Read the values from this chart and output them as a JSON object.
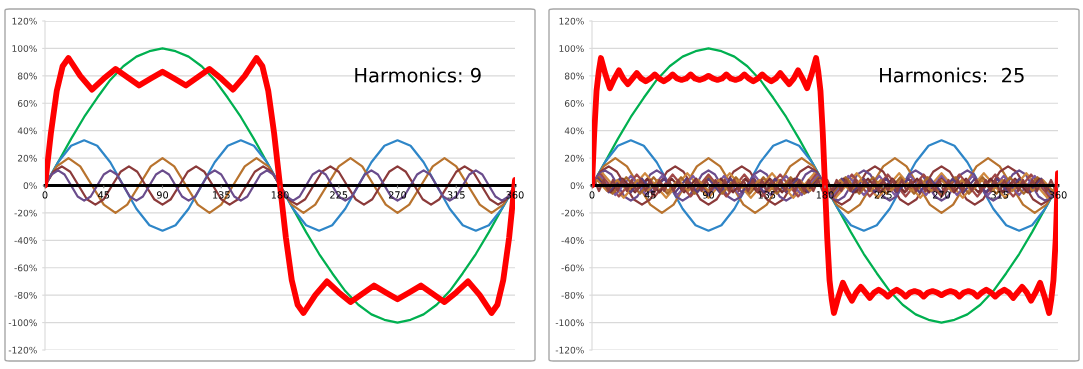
{
  "chart_data": [
    {
      "type": "line",
      "annotations": [
        "Harmonics: 9"
      ],
      "xlim": [
        0,
        360
      ],
      "xticks": [
        0,
        45,
        90,
        135,
        180,
        225,
        270,
        315,
        360
      ],
      "ylim": [
        -120,
        120
      ],
      "yticks": [
        {
          "value": -120,
          "label": "-120%"
        },
        {
          "value": -100,
          "label": "-100%"
        },
        {
          "value": -80,
          "label": "-80%"
        },
        {
          "value": -60,
          "label": "-60%"
        },
        {
          "value": -40,
          "label": "-40%"
        },
        {
          "value": -20,
          "label": "-20%"
        },
        {
          "value": 0,
          "label": "0%"
        },
        {
          "value": 20,
          "label": "20%"
        },
        {
          "value": 40,
          "label": "40%"
        },
        {
          "value": 60,
          "label": "60%"
        },
        {
          "value": 80,
          "label": "80%"
        },
        {
          "value": 100,
          "label": "100%"
        },
        {
          "value": 120,
          "label": "120%"
        }
      ],
      "grid": "y",
      "series": [
        {
          "color": "#ff0000",
          "x": [
            0,
            4.5,
            9,
            13.5,
            18,
            27,
            36,
            45,
            54,
            63,
            72,
            81,
            90,
            99,
            108,
            117,
            126,
            135,
            144,
            153,
            162,
            166.5,
            171,
            175.5,
            180,
            184.5,
            189,
            193.5,
            198,
            207,
            216,
            225,
            234,
            243,
            252,
            261,
            270,
            279,
            288,
            297,
            306,
            315,
            324,
            333,
            342,
            346.5,
            351,
            355.5,
            360
          ],
          "values": [
            0,
            38,
            69,
            87,
            93,
            80,
            70,
            78,
            85,
            79,
            73,
            78,
            83,
            78,
            73,
            79,
            85,
            78,
            70,
            80,
            93,
            87,
            69,
            38,
            0,
            -38,
            -69,
            -87,
            -93,
            -80,
            -70,
            -78,
            -85,
            -79,
            -73,
            -78,
            -83,
            -78,
            -73,
            -79,
            -85,
            -78,
            -70,
            -80,
            -93,
            -87,
            -69,
            -38,
            4
          ]
        },
        {
          "color": "#00b050",
          "x": [
            0,
            10,
            20,
            30,
            40,
            50,
            60,
            70,
            80,
            90,
            100,
            110,
            120,
            130,
            140,
            150,
            160,
            170,
            180,
            190,
            200,
            210,
            220,
            230,
            240,
            250,
            260,
            270,
            280,
            290,
            300,
            310,
            320,
            330,
            340,
            350,
            360
          ],
          "values": [
            0,
            17,
            34,
            50,
            64,
            77,
            87,
            94,
            98,
            100,
            98,
            94,
            87,
            77,
            64,
            50,
            34,
            17,
            0,
            -17,
            -34,
            -50,
            -64,
            -77,
            -87,
            -94,
            -98,
            -100,
            -98,
            -94,
            -87,
            -77,
            -64,
            -50,
            -34,
            -17,
            0
          ]
        },
        {
          "color": "#2e86c8",
          "x": [
            0,
            10,
            20,
            30,
            40,
            50,
            60,
            70,
            80,
            90,
            100,
            110,
            120,
            130,
            140,
            150,
            160,
            170,
            180,
            190,
            200,
            210,
            220,
            230,
            240,
            250,
            260,
            270,
            280,
            290,
            300,
            310,
            320,
            330,
            340,
            350,
            360
          ],
          "values": [
            0,
            17,
            29,
            33,
            29,
            17,
            0,
            -17,
            -29,
            -33,
            -29,
            -17,
            0,
            17,
            29,
            33,
            29,
            17,
            0,
            -17,
            -29,
            -33,
            -29,
            -17,
            0,
            17,
            29,
            33,
            29,
            17,
            0,
            -17,
            -29,
            -33,
            -29,
            -17,
            0
          ]
        },
        {
          "color": "#b8732e",
          "x": [
            0,
            9,
            18,
            27,
            36,
            45,
            54,
            63,
            72,
            81,
            90,
            99,
            108,
            117,
            126,
            135,
            144,
            153,
            162,
            171,
            180,
            189,
            198,
            207,
            216,
            225,
            234,
            243,
            252,
            261,
            270,
            279,
            288,
            297,
            306,
            315,
            324,
            333,
            342,
            351,
            360
          ],
          "values": [
            0,
            14,
            20,
            14,
            0,
            -14,
            -20,
            -14,
            0,
            14,
            20,
            14,
            0,
            -14,
            -20,
            -14,
            0,
            14,
            20,
            14,
            0,
            -14,
            -20,
            -14,
            0,
            14,
            20,
            14,
            0,
            -14,
            -20,
            -14,
            0,
            14,
            20,
            14,
            0,
            -14,
            -20,
            -14,
            0
          ]
        },
        {
          "color": "#8b3a3a",
          "x": [
            0,
            6.4,
            12.9,
            19.3,
            25.7,
            32.1,
            38.6,
            45,
            51.4,
            57.9,
            64.3,
            70.7,
            77.1,
            83.6,
            90,
            96.4,
            102.9,
            109.3,
            115.7,
            122.1,
            128.6,
            135,
            141.4,
            147.9,
            154.3,
            160.7,
            167.1,
            173.6,
            180,
            186.4,
            192.9,
            199.3,
            205.7,
            212.1,
            218.6,
            225,
            231.4,
            237.9,
            244.3,
            250.7,
            257.1,
            263.6,
            270,
            276.4,
            282.9,
            289.3,
            295.7,
            302.1,
            308.6,
            315,
            321.4,
            327.9,
            334.3,
            340.7,
            347.1,
            353.6,
            360
          ],
          "values": [
            0,
            10,
            14,
            10,
            0,
            -10,
            -14,
            -10,
            0,
            10,
            14,
            10,
            0,
            -10,
            -14,
            -10,
            0,
            10,
            14,
            10,
            0,
            -10,
            -14,
            -10,
            0,
            10,
            14,
            10,
            0,
            -10,
            -14,
            -10,
            0,
            10,
            14,
            10,
            0,
            -10,
            -14,
            -10,
            0,
            10,
            14,
            10,
            0,
            -10,
            -14,
            -10,
            0,
            10,
            14,
            10,
            0,
            -10,
            -14,
            -10,
            0
          ]
        },
        {
          "color": "#6a4c8c",
          "x": [
            0,
            5,
            10,
            15,
            20,
            25,
            30,
            35,
            40,
            45,
            50,
            55,
            60,
            65,
            70,
            75,
            80,
            85,
            90,
            95,
            100,
            105,
            110,
            115,
            120,
            125,
            130,
            135,
            140,
            145,
            150,
            155,
            160,
            165,
            170,
            175,
            180,
            185,
            190,
            195,
            200,
            205,
            210,
            215,
            220,
            225,
            230,
            235,
            240,
            245,
            250,
            255,
            260,
            265,
            270,
            275,
            280,
            285,
            290,
            295,
            300,
            305,
            310,
            315,
            320,
            325,
            330,
            335,
            340,
            345,
            350,
            355,
            360
          ],
          "values": [
            0,
            8,
            11,
            8,
            0,
            -8,
            -11,
            -8,
            0,
            8,
            11,
            8,
            0,
            -8,
            -11,
            -8,
            0,
            8,
            11,
            8,
            0,
            -8,
            -11,
            -8,
            0,
            8,
            11,
            8,
            0,
            -8,
            -11,
            -8,
            0,
            8,
            11,
            8,
            0,
            -8,
            -11,
            -8,
            0,
            8,
            11,
            8,
            0,
            -8,
            -11,
            -8,
            0,
            8,
            11,
            8,
            0,
            -8,
            -11,
            -8,
            0,
            8,
            11,
            8,
            0,
            -8,
            -11,
            -8,
            0,
            8,
            11,
            8,
            0,
            -8,
            -11,
            -8,
            0
          ]
        }
      ]
    },
    {
      "type": "line",
      "annotations": [
        "Harmonics:  25"
      ],
      "xlim": [
        0,
        360
      ],
      "xticks": [
        0,
        45,
        90,
        135,
        180,
        225,
        270,
        315,
        360
      ],
      "ylim": [
        -120,
        120
      ],
      "yticks": [
        {
          "value": -120,
          "label": "-120%"
        },
        {
          "value": -100,
          "label": "-100%"
        },
        {
          "value": -80,
          "label": "-80%"
        },
        {
          "value": -60,
          "label": "-60%"
        },
        {
          "value": -40,
          "label": "-40%"
        },
        {
          "value": -20,
          "label": "-20%"
        },
        {
          "value": 0,
          "label": "0%"
        },
        {
          "value": 20,
          "label": "20%"
        },
        {
          "value": 40,
          "label": "40%"
        },
        {
          "value": 60,
          "label": "60%"
        },
        {
          "value": 80,
          "label": "80%"
        },
        {
          "value": 100,
          "label": "100%"
        },
        {
          "value": 120,
          "label": "120%"
        }
      ],
      "grid": "y",
      "series": [
        {
          "color": "#ff0000",
          "x": [
            0,
            1.7,
            3.5,
            5.2,
            6.9,
            10.4,
            13.8,
            17.3,
            20.8,
            24.2,
            27.7,
            31.2,
            34.6,
            38.1,
            41.5,
            45,
            48.5,
            51.9,
            55.4,
            58.8,
            62.3,
            65.8,
            69.2,
            72.7,
            76.2,
            79.6,
            83.1,
            86.5,
            90,
            93.5,
            96.9,
            100.4,
            103.8,
            107.3,
            110.8,
            114.2,
            117.7,
            121.2,
            124.6,
            128.1,
            131.5,
            135,
            138.5,
            141.9,
            145.4,
            148.8,
            152.3,
            155.8,
            159.2,
            162.7,
            166.2,
            169.6,
            173.1,
            174.8,
            176.5,
            178.3,
            180,
            181.7,
            183.5,
            185.2,
            186.9,
            190.4,
            193.8,
            197.3,
            200.8,
            204.2,
            207.7,
            211.2,
            214.6,
            218.1,
            221.5,
            225,
            228.5,
            231.9,
            235.4,
            238.8,
            242.3,
            245.8,
            249.2,
            252.7,
            256.2,
            259.6,
            263.1,
            266.5,
            270,
            273.5,
            276.9,
            280.4,
            283.8,
            287.3,
            290.8,
            294.2,
            297.7,
            301.2,
            304.6,
            308.1,
            311.5,
            315,
            318.5,
            321.9,
            325.4,
            328.8,
            332.3,
            335.8,
            339.2,
            342.7,
            346.2,
            349.6,
            353.1,
            354.8,
            356.5,
            358.3,
            360
          ],
          "values": [
            0,
            38,
            69,
            83,
            93,
            81,
            71,
            78,
            84,
            78,
            74,
            78,
            82,
            78,
            76,
            78,
            81,
            78,
            76,
            78,
            81,
            78,
            77,
            78,
            81,
            78,
            77,
            78,
            80,
            78,
            77,
            78,
            81,
            78,
            77,
            78,
            81,
            78,
            76,
            78,
            81,
            78,
            76,
            78,
            82,
            78,
            74,
            78,
            84,
            78,
            71,
            81,
            93,
            83,
            69,
            38,
            0,
            -38,
            -69,
            -83,
            -93,
            -81,
            -71,
            -78,
            -84,
            -78,
            -74,
            -78,
            -82,
            -78,
            -76,
            -78,
            -81,
            -78,
            -76,
            -78,
            -81,
            -78,
            -77,
            -78,
            -81,
            -78,
            -77,
            -78,
            -80,
            -78,
            -77,
            -78,
            -81,
            -78,
            -77,
            -78,
            -81,
            -78,
            -76,
            -78,
            -81,
            -78,
            -76,
            -78,
            -82,
            -78,
            -74,
            -78,
            -84,
            -78,
            -71,
            -81,
            -93,
            -83,
            -69,
            -38,
            9
          ]
        },
        {
          "color": "#00b050",
          "x": [
            0,
            10,
            20,
            30,
            40,
            50,
            60,
            70,
            80,
            90,
            100,
            110,
            120,
            130,
            140,
            150,
            160,
            170,
            180,
            190,
            200,
            210,
            220,
            230,
            240,
            250,
            260,
            270,
            280,
            290,
            300,
            310,
            320,
            330,
            340,
            350,
            360
          ],
          "values": [
            0,
            17,
            34,
            50,
            64,
            77,
            87,
            94,
            98,
            100,
            98,
            94,
            87,
            77,
            64,
            50,
            34,
            17,
            0,
            -17,
            -34,
            -50,
            -64,
            -77,
            -87,
            -94,
            -98,
            -100,
            -98,
            -94,
            -87,
            -77,
            -64,
            -50,
            -34,
            -17,
            0
          ]
        },
        {
          "color": "#2e86c8",
          "x": [
            0,
            10,
            20,
            30,
            40,
            50,
            60,
            70,
            80,
            90,
            100,
            110,
            120,
            130,
            140,
            150,
            160,
            170,
            180,
            190,
            200,
            210,
            220,
            230,
            240,
            250,
            260,
            270,
            280,
            290,
            300,
            310,
            320,
            330,
            340,
            350,
            360
          ],
          "values": [
            0,
            17,
            29,
            33,
            29,
            17,
            0,
            -17,
            -29,
            -33,
            -29,
            -17,
            0,
            17,
            29,
            33,
            29,
            17,
            0,
            -17,
            -29,
            -33,
            -29,
            -17,
            0,
            17,
            29,
            33,
            29,
            17,
            0,
            -17,
            -29,
            -33,
            -29,
            -17,
            0
          ]
        },
        {
          "color": "#b8732e",
          "x": [
            0,
            9,
            18,
            27,
            36,
            45,
            54,
            63,
            72,
            81,
            90,
            99,
            108,
            117,
            126,
            135,
            144,
            153,
            162,
            171,
            180,
            189,
            198,
            207,
            216,
            225,
            234,
            243,
            252,
            261,
            270,
            279,
            288,
            297,
            306,
            315,
            324,
            333,
            342,
            351,
            360
          ],
          "values": [
            0,
            14,
            20,
            14,
            0,
            -14,
            -20,
            -14,
            0,
            14,
            20,
            14,
            0,
            -14,
            -20,
            -14,
            0,
            14,
            20,
            14,
            0,
            -14,
            -20,
            -14,
            0,
            14,
            20,
            14,
            0,
            -14,
            -20,
            -14,
            0,
            14,
            20,
            14,
            0,
            -14,
            -20,
            -14,
            0
          ]
        },
        {
          "color": "#8b3a3a",
          "x": [
            0,
            6.4,
            12.9,
            19.3,
            25.7,
            32.1,
            38.6,
            45,
            51.4,
            57.9,
            64.3,
            70.7,
            77.1,
            83.6,
            90,
            96.4,
            102.9,
            109.3,
            115.7,
            122.1,
            128.6,
            135,
            141.4,
            147.9,
            154.3,
            160.7,
            167.1,
            173.6,
            180,
            186.4,
            192.9,
            199.3,
            205.7,
            212.1,
            218.6,
            225,
            231.4,
            237.9,
            244.3,
            250.7,
            257.1,
            263.6,
            270,
            276.4,
            282.9,
            289.3,
            295.7,
            302.1,
            308.6,
            315,
            321.4,
            327.9,
            334.3,
            340.7,
            347.1,
            353.6,
            360
          ],
          "values": [
            0,
            10,
            14,
            10,
            0,
            -10,
            -14,
            -10,
            0,
            10,
            14,
            10,
            0,
            -10,
            -14,
            -10,
            0,
            10,
            14,
            10,
            0,
            -10,
            -14,
            -10,
            0,
            10,
            14,
            10,
            0,
            -10,
            -14,
            -10,
            0,
            10,
            14,
            10,
            0,
            -10,
            -14,
            -10,
            0,
            10,
            14,
            10,
            0,
            -10,
            -14,
            -10,
            0,
            10,
            14,
            10,
            0,
            -10,
            -14,
            -10,
            0
          ]
        },
        {
          "color": "#6a4c8c",
          "x": [
            0,
            5,
            10,
            15,
            20,
            25,
            30,
            35,
            40,
            45,
            50,
            55,
            60,
            65,
            70,
            75,
            80,
            85,
            90,
            95,
            100,
            105,
            110,
            115,
            120,
            125,
            130,
            135,
            140,
            145,
            150,
            155,
            160,
            165,
            170,
            175,
            180,
            185,
            190,
            195,
            200,
            205,
            210,
            215,
            220,
            225,
            230,
            235,
            240,
            245,
            250,
            255,
            260,
            265,
            270,
            275,
            280,
            285,
            290,
            295,
            300,
            305,
            310,
            315,
            320,
            325,
            330,
            335,
            340,
            345,
            350,
            355,
            360
          ],
          "values": [
            0,
            8,
            11,
            8,
            0,
            -8,
            -11,
            -8,
            0,
            8,
            11,
            8,
            0,
            -8,
            -11,
            -8,
            0,
            8,
            11,
            8,
            0,
            -8,
            -11,
            -8,
            0,
            8,
            11,
            8,
            0,
            -8,
            -11,
            -8,
            0,
            8,
            11,
            8,
            0,
            -8,
            -11,
            -8,
            0,
            8,
            11,
            8,
            0,
            -8,
            -11,
            -8,
            0,
            8,
            11,
            8,
            0,
            -8,
            -11,
            -8,
            0,
            8,
            11,
            8,
            0,
            -8,
            -11,
            -8,
            0,
            8,
            11,
            8,
            0,
            -8,
            -11,
            -8,
            0
          ]
        },
        {
          "color": "#d08a40",
          "x": [
            0,
            8.2,
            24.5,
            40.9,
            57.3,
            73.6,
            90,
            106.4,
            122.7,
            139.1,
            155.5,
            171.8,
            188.2,
            204.5,
            220.9,
            237.3,
            253.6,
            270,
            286.4,
            302.7,
            319.1,
            335.5,
            351.8,
            360
          ],
          "values": [
            0,
            9,
            -9,
            9,
            -9,
            9,
            -9,
            9,
            -9,
            9,
            -9,
            9,
            -9,
            9,
            -9,
            9,
            -9,
            9,
            -9,
            9,
            -9,
            9,
            -9,
            0
          ]
        },
        {
          "color": "#a04848",
          "x": [
            0,
            6.9,
            20.8,
            34.6,
            48.5,
            62.3,
            76.2,
            90,
            103.8,
            117.7,
            131.5,
            145.4,
            159.2,
            173.1,
            186.9,
            200.8,
            214.6,
            228.5,
            242.3,
            256.2,
            270,
            283.8,
            297.7,
            311.5,
            325.4,
            339.2,
            353.1,
            360
          ],
          "values": [
            0,
            8,
            -8,
            8,
            -8,
            8,
            -8,
            8,
            -8,
            8,
            -8,
            8,
            -8,
            8,
            -8,
            8,
            -8,
            8,
            -8,
            8,
            -8,
            8,
            -8,
            8,
            -8,
            8,
            -8,
            0
          ]
        },
        {
          "color": "#7d5aa0",
          "x": [
            0,
            6,
            18,
            30,
            42,
            54,
            66,
            78,
            90,
            102,
            114,
            126,
            138,
            150,
            162,
            174,
            186,
            198,
            210,
            222,
            234,
            246,
            258,
            270,
            282,
            294,
            306,
            318,
            330,
            342,
            354,
            360
          ],
          "values": [
            0,
            7,
            -7,
            7,
            -7,
            7,
            -7,
            7,
            -7,
            7,
            -7,
            7,
            -7,
            7,
            -7,
            7,
            -7,
            7,
            -7,
            7,
            -7,
            7,
            -7,
            7,
            -7,
            7,
            -7,
            7,
            -7,
            7,
            -7,
            0
          ]
        },
        {
          "color": "#a8682a",
          "x": [
            0,
            5.3,
            15.9,
            26.5,
            37.1,
            47.6,
            58.2,
            68.8,
            79.4,
            90,
            100.6,
            111.2,
            121.8,
            132.4,
            142.9,
            153.5,
            164.1,
            174.7,
            185.3,
            195.9,
            206.5,
            217.1,
            227.6,
            238.2,
            248.8,
            259.4,
            270,
            280.6,
            291.2,
            301.8,
            312.4,
            322.9,
            333.5,
            344.1,
            354.7,
            360
          ],
          "values": [
            0,
            6,
            -6,
            6,
            -6,
            6,
            -6,
            6,
            -6,
            6,
            -6,
            6,
            -6,
            6,
            -6,
            6,
            -6,
            6,
            -6,
            6,
            -6,
            6,
            -6,
            6,
            -6,
            6,
            -6,
            6,
            -6,
            6,
            -6,
            6,
            -6,
            6,
            -6,
            0
          ]
        },
        {
          "color": "#7a3030",
          "x": [
            0,
            4.7,
            14.2,
            23.7,
            33.2,
            42.6,
            52.1,
            61.6,
            71.1,
            80.5,
            90,
            99.5,
            108.9,
            118.4,
            127.9,
            137.4,
            146.8,
            156.3,
            165.8,
            175.3,
            184.7,
            194.2,
            203.7,
            213.2,
            222.6,
            232.1,
            241.6,
            251.1,
            260.5,
            270,
            279.5,
            288.9,
            298.4,
            307.9,
            317.4,
            326.8,
            336.3,
            345.8,
            355.3,
            360
          ],
          "values": [
            0,
            5,
            -5,
            5,
            -5,
            5,
            -5,
            5,
            -5,
            5,
            -5,
            5,
            -5,
            5,
            -5,
            5,
            -5,
            5,
            -5,
            5,
            -5,
            5,
            -5,
            5,
            -5,
            5,
            -5,
            5,
            -5,
            5,
            -5,
            5,
            -5,
            5,
            -5,
            5,
            -5,
            5,
            -5,
            0
          ]
        },
        {
          "color": "#5c3f7c",
          "x": [
            0,
            4.3,
            12.9,
            21.4,
            30,
            38.6,
            47.1,
            55.7,
            64.3,
            72.9,
            81.4,
            90,
            98.6,
            107.1,
            115.7,
            124.3,
            132.9,
            141.4,
            150,
            158.6,
            167.1,
            175.7,
            184.3,
            192.9,
            201.4,
            210,
            218.6,
            227.1,
            235.7,
            244.3,
            252.9,
            261.4,
            270,
            278.6,
            287.1,
            295.7,
            304.3,
            312.9,
            321.4,
            330,
            338.6,
            347.1,
            355.7,
            360
          ],
          "values": [
            0,
            5,
            -5,
            5,
            -5,
            5,
            -5,
            5,
            -5,
            5,
            -5,
            5,
            -5,
            5,
            -5,
            5,
            -5,
            5,
            -5,
            5,
            -5,
            5,
            -5,
            5,
            -5,
            5,
            -5,
            5,
            -5,
            5,
            -5,
            5,
            -5,
            5,
            -5,
            5,
            -5,
            5,
            -5,
            5,
            -5,
            5,
            -5,
            0
          ]
        },
        {
          "color": "#c07a36",
          "x": [
            0,
            3.9,
            11.7,
            19.6,
            27.4,
            35.2,
            43.0,
            50.9,
            58.7,
            66.5,
            74.3,
            82.2,
            90,
            97.8,
            105.7,
            113.5,
            121.3,
            129.1,
            137.0,
            144.8,
            152.6,
            160.4,
            168.3,
            176.1,
            183.9,
            191.7,
            199.6,
            207.4,
            215.2,
            223.0,
            230.9,
            238.7,
            246.5,
            254.3,
            262.2,
            270,
            277.8,
            285.7,
            293.5,
            301.3,
            309.1,
            317.0,
            324.8,
            332.6,
            340.4,
            348.3,
            356.1,
            360
          ],
          "values": [
            0,
            4,
            -4,
            4,
            -4,
            4,
            -4,
            4,
            -4,
            4,
            -4,
            4,
            -4,
            4,
            -4,
            4,
            -4,
            4,
            -4,
            4,
            -4,
            4,
            -4,
            4,
            -4,
            4,
            -4,
            4,
            -4,
            4,
            -4,
            4,
            -4,
            4,
            -4,
            4,
            -4,
            4,
            -4,
            4,
            -4,
            4,
            -4,
            4,
            -4,
            4,
            -4,
            0
          ]
        },
        {
          "color": "#904040",
          "x": [
            0,
            1.8,
            5.4,
            9,
            12.6,
            16.2,
            19.8,
            23.4,
            27,
            30.6,
            34.2,
            37.8,
            41.4,
            45,
            48.6,
            52.2,
            55.8,
            59.4,
            63,
            66.6,
            70.2,
            73.8,
            77.4,
            81,
            84.6,
            88.2,
            91.8,
            95.4,
            99,
            102.6,
            106.2,
            109.8,
            113.4,
            117,
            120.6,
            124.2,
            127.8,
            131.4,
            135,
            138.6,
            142.2,
            145.8,
            149.4,
            153,
            156.6,
            160.2,
            163.8,
            167.4,
            171,
            174.6,
            178.2,
            181.8,
            185.4,
            189,
            192.6,
            196.2,
            199.8,
            203.4,
            207,
            210.6,
            214.2,
            217.8,
            221.4,
            225,
            228.6,
            232.2,
            235.8,
            239.4,
            243,
            246.6,
            250.2,
            253.8,
            257.4,
            261,
            264.6,
            268.2,
            271.8,
            275.4,
            279,
            282.6,
            286.2,
            289.8,
            293.4,
            297,
            300.6,
            304.2,
            307.8,
            311.4,
            315,
            318.6,
            322.2,
            325.8,
            329.4,
            333,
            336.6,
            340.2,
            343.8,
            347.4,
            351,
            354.6,
            358.2,
            360
          ],
          "values": [
            0,
            4,
            -4,
            4,
            -4,
            4,
            -4,
            4,
            -4,
            4,
            -4,
            4,
            -4,
            4,
            -4,
            4,
            -4,
            4,
            -4,
            4,
            -4,
            4,
            -4,
            4,
            -4,
            4,
            -4,
            4,
            -4,
            4,
            -4,
            4,
            -4,
            4,
            -4,
            4,
            -4,
            4,
            -4,
            4,
            -4,
            4,
            -4,
            4,
            -4,
            4,
            -4,
            4,
            -4,
            4,
            -4,
            4,
            -4,
            4,
            -4,
            4,
            -4,
            4,
            -4,
            4,
            -4,
            4,
            -4,
            4,
            -4,
            4,
            -4,
            4,
            -4,
            4,
            -4,
            4,
            -4,
            4,
            -4,
            4,
            -4,
            4,
            -4,
            4,
            -4,
            4,
            -4,
            4,
            -4,
            4,
            -4,
            4,
            -4,
            4,
            -4,
            4,
            -4,
            4,
            -4,
            4,
            -4,
            4,
            -4,
            4,
            -4,
            0
          ]
        }
      ]
    }
  ]
}
